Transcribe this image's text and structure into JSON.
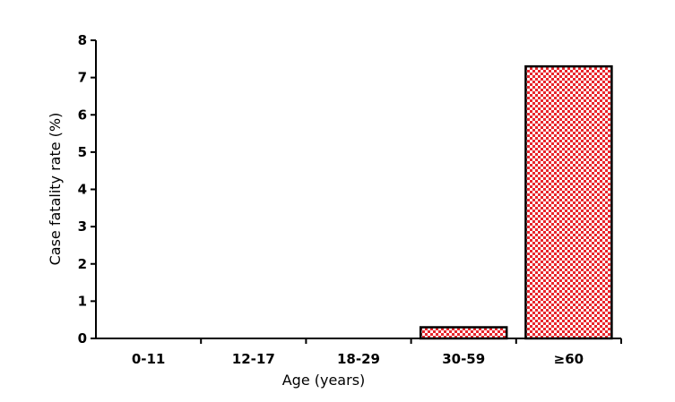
{
  "chart_data": {
    "type": "bar",
    "categories": [
      "0-11",
      "12-17",
      "18-29",
      "30-59",
      "≥60"
    ],
    "values": [
      0,
      0,
      0,
      0.3,
      7.3
    ],
    "xlabel": "Age (years)",
    "ylabel": "Case fatality rate (%)",
    "ylim": [
      0,
      8
    ],
    "yticks": [
      "0",
      "1",
      "2",
      "3",
      "4",
      "5",
      "6",
      "7",
      "8"
    ],
    "grid": false,
    "legend": "none",
    "bar_fill": "#e8262c",
    "bar_pattern": "checkered",
    "bar_outline": "#000000"
  }
}
